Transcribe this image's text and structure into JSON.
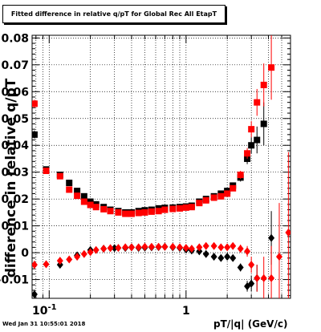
{
  "title": "Fitted difference in relative q/pT for Global Rec All EtapT",
  "timestamp": "Wed Jan 31 10:55:01 2018",
  "colors": {
    "black_series": "#000000",
    "red_series": "#ff0000",
    "grid": "#000000"
  },
  "chart_data": {
    "type": "scatter",
    "title": "Fitted difference in relative q/pT for Global Rec All EtapT",
    "xlabel": "pT/|q| (GeV/c)",
    "ylabel": "difference in relative q/pT",
    "xscale": "log",
    "xlim": [
      0.075,
      5.8
    ],
    "ylim": [
      -0.017,
      0.081
    ],
    "grid": true,
    "x_ticks": [
      {
        "value": 0.1,
        "label": "10^-1"
      },
      {
        "value": 1,
        "label": "1"
      }
    ],
    "y_ticks": [
      {
        "value": -0.01,
        "label": "-0.01"
      },
      {
        "value": 0,
        "label": "0"
      },
      {
        "value": 0.01,
        "label": "0.01"
      },
      {
        "value": 0.02,
        "label": "0.02"
      },
      {
        "value": 0.03,
        "label": "0.03"
      },
      {
        "value": 0.04,
        "label": "0.04"
      },
      {
        "value": 0.05,
        "label": "0.05"
      },
      {
        "value": 0.06,
        "label": "0.06"
      },
      {
        "value": 0.07,
        "label": "0.07"
      },
      {
        "value": 0.08,
        "label": "0.08"
      }
    ],
    "series": [
      {
        "marker": "square",
        "color": "#000000",
        "points": [
          [
            0.078,
            0.044,
            0.0015
          ],
          [
            0.095,
            0.031,
            0.001
          ],
          [
            0.12,
            0.029,
            0.001
          ],
          [
            0.14,
            0.026,
            0.001
          ],
          [
            0.16,
            0.023,
            0.0007
          ],
          [
            0.18,
            0.021,
            0.0007
          ],
          [
            0.2,
            0.019,
            0.0006
          ],
          [
            0.22,
            0.018,
            0.0006
          ],
          [
            0.25,
            0.017,
            0.0005
          ],
          [
            0.28,
            0.016,
            0.0005
          ],
          [
            0.32,
            0.0155,
            0.0005
          ],
          [
            0.36,
            0.015,
            0.0005
          ],
          [
            0.4,
            0.015,
            0.0005
          ],
          [
            0.45,
            0.0155,
            0.0005
          ],
          [
            0.5,
            0.0158,
            0.0005
          ],
          [
            0.56,
            0.016,
            0.0005
          ],
          [
            0.63,
            0.0165,
            0.0005
          ],
          [
            0.7,
            0.0167,
            0.0005
          ],
          [
            0.8,
            0.0168,
            0.0005
          ],
          [
            0.9,
            0.017,
            0.0005
          ],
          [
            1.0,
            0.0172,
            0.0005
          ],
          [
            1.1,
            0.0175,
            0.0005
          ],
          [
            1.25,
            0.019,
            0.0006
          ],
          [
            1.4,
            0.02,
            0.0006
          ],
          [
            1.6,
            0.021,
            0.0007
          ],
          [
            1.8,
            0.022,
            0.0008
          ],
          [
            2.0,
            0.023,
            0.0009
          ],
          [
            2.2,
            0.025,
            0.001
          ],
          [
            2.5,
            0.028,
            0.0015
          ],
          [
            2.8,
            0.035,
            0.002
          ],
          [
            3.0,
            0.04,
            0.003
          ],
          [
            3.3,
            0.042,
            0.005
          ],
          [
            3.7,
            0.048,
            0.008
          ]
        ]
      },
      {
        "marker": "square",
        "color": "#ff0000",
        "points": [
          [
            0.078,
            0.0555,
            0.0015
          ],
          [
            0.095,
            0.0305,
            0.001
          ],
          [
            0.12,
            0.0285,
            0.001
          ],
          [
            0.14,
            0.0235,
            0.001
          ],
          [
            0.16,
            0.0212,
            0.0007
          ],
          [
            0.18,
            0.019,
            0.0007
          ],
          [
            0.2,
            0.0178,
            0.0006
          ],
          [
            0.22,
            0.017,
            0.0006
          ],
          [
            0.25,
            0.0162,
            0.0005
          ],
          [
            0.28,
            0.0155,
            0.0005
          ],
          [
            0.32,
            0.015,
            0.0005
          ],
          [
            0.36,
            0.0145,
            0.0005
          ],
          [
            0.4,
            0.0145,
            0.0005
          ],
          [
            0.45,
            0.0148,
            0.0005
          ],
          [
            0.5,
            0.015,
            0.0005
          ],
          [
            0.56,
            0.0153,
            0.0005
          ],
          [
            0.63,
            0.0155,
            0.0005
          ],
          [
            0.7,
            0.016,
            0.0005
          ],
          [
            0.8,
            0.0163,
            0.0005
          ],
          [
            0.9,
            0.0165,
            0.0005
          ],
          [
            1.0,
            0.0168,
            0.0005
          ],
          [
            1.1,
            0.017,
            0.0005
          ],
          [
            1.25,
            0.0185,
            0.0006
          ],
          [
            1.4,
            0.0195,
            0.0006
          ],
          [
            1.6,
            0.0205,
            0.0007
          ],
          [
            1.8,
            0.021,
            0.0008
          ],
          [
            2.0,
            0.022,
            0.0009
          ],
          [
            2.2,
            0.024,
            0.001
          ],
          [
            2.5,
            0.029,
            0.0015
          ],
          [
            2.8,
            0.037,
            0.002
          ],
          [
            3.0,
            0.046,
            0.003
          ],
          [
            3.3,
            0.056,
            0.005
          ],
          [
            3.7,
            0.0625,
            0.008
          ],
          [
            4.2,
            0.069,
            0.012
          ]
        ]
      },
      {
        "marker": "diamond",
        "color": "#000000",
        "points": [
          [
            0.078,
            -0.0155,
            0.0015
          ],
          [
            0.12,
            -0.0045,
            0.001
          ],
          [
            0.16,
            -0.001,
            0.0007
          ],
          [
            0.2,
            0.001,
            0.0006
          ],
          [
            0.25,
            0.0015,
            0.0005
          ],
          [
            0.3,
            0.0017,
            0.0005
          ],
          [
            0.36,
            0.0018,
            0.0005
          ],
          [
            0.4,
            0.002,
            0.0005
          ],
          [
            0.45,
            0.0018,
            0.0005
          ],
          [
            0.5,
            0.0019,
            0.0005
          ],
          [
            0.56,
            0.002,
            0.0005
          ],
          [
            0.63,
            0.0021,
            0.0005
          ],
          [
            0.7,
            0.0022,
            0.0005
          ],
          [
            0.8,
            0.002,
            0.0005
          ],
          [
            0.9,
            0.0018,
            0.0005
          ],
          [
            1.0,
            0.0012,
            0.0005
          ],
          [
            1.1,
            0.0008,
            0.0005
          ],
          [
            1.25,
            0.0005,
            0.0006
          ],
          [
            1.4,
            -0.0005,
            0.0006
          ],
          [
            1.6,
            -0.0015,
            0.0007
          ],
          [
            1.8,
            -0.002,
            0.0008
          ],
          [
            2.0,
            -0.0015,
            0.0009
          ],
          [
            2.2,
            -0.002,
            0.001
          ],
          [
            2.5,
            -0.0055,
            0.0015
          ],
          [
            2.8,
            -0.0125,
            0.002
          ],
          [
            3.0,
            -0.0115,
            0.003
          ],
          [
            3.3,
            -0.0095,
            0.005
          ],
          [
            4.2,
            0.0055,
            0.01
          ]
        ]
      },
      {
        "marker": "diamond",
        "color": "#ff0000",
        "points": [
          [
            0.078,
            -0.0045,
            0.0015
          ],
          [
            0.095,
            -0.0043,
            0.001
          ],
          [
            0.12,
            -0.003,
            0.001
          ],
          [
            0.14,
            -0.0025,
            0.001
          ],
          [
            0.16,
            -0.0015,
            0.0007
          ],
          [
            0.18,
            -0.0005,
            0.0007
          ],
          [
            0.2,
            0.0002,
            0.0006
          ],
          [
            0.22,
            0.001,
            0.0006
          ],
          [
            0.25,
            0.0015,
            0.0005
          ],
          [
            0.28,
            0.0017,
            0.0005
          ],
          [
            0.32,
            0.0018,
            0.0005
          ],
          [
            0.36,
            0.002,
            0.0005
          ],
          [
            0.4,
            0.002,
            0.0005
          ],
          [
            0.45,
            0.002,
            0.0005
          ],
          [
            0.5,
            0.0022,
            0.0005
          ],
          [
            0.56,
            0.0022,
            0.0005
          ],
          [
            0.63,
            0.0022,
            0.0005
          ],
          [
            0.7,
            0.0022,
            0.0005
          ],
          [
            0.8,
            0.0022,
            0.0005
          ],
          [
            0.9,
            0.002,
            0.0005
          ],
          [
            1.0,
            0.0018,
            0.0005
          ],
          [
            1.1,
            0.0015,
            0.0005
          ],
          [
            1.25,
            0.002,
            0.0006
          ],
          [
            1.4,
            0.0025,
            0.0006
          ],
          [
            1.6,
            0.0025,
            0.0007
          ],
          [
            1.8,
            0.002,
            0.0008
          ],
          [
            2.0,
            0.002,
            0.0009
          ],
          [
            2.2,
            0.0025,
            0.001
          ],
          [
            2.5,
            0.0015,
            0.0015
          ],
          [
            2.8,
            0.0005,
            0.002
          ],
          [
            3.0,
            -0.0045,
            0.003
          ],
          [
            3.3,
            -0.0095,
            0.005
          ],
          [
            3.7,
            -0.0095,
            0.008
          ],
          [
            4.2,
            -0.0095,
            0.012
          ],
          [
            4.8,
            -0.0015,
            0.02
          ],
          [
            5.6,
            0.0075,
            0.03
          ]
        ]
      }
    ]
  }
}
